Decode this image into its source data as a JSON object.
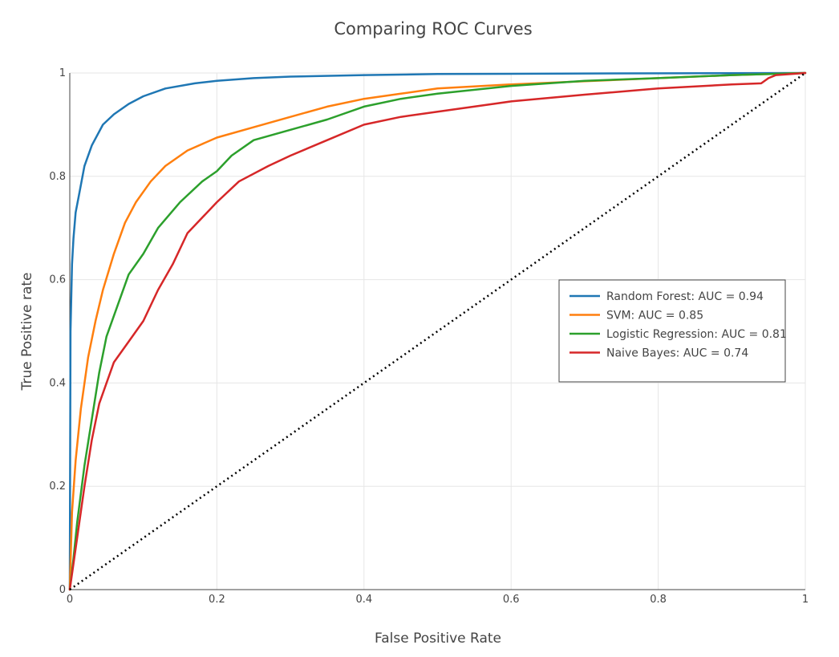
{
  "chart_data": {
    "type": "line",
    "title": "Comparing ROC Curves",
    "xlabel": "False Positive Rate",
    "ylabel": "True Positive rate",
    "xlim": [
      0,
      1
    ],
    "ylim": [
      0,
      1
    ],
    "xticks": [
      0,
      0.2,
      0.4,
      0.6,
      0.8,
      1
    ],
    "yticks": [
      0,
      0.2,
      0.4,
      0.6,
      0.8,
      1
    ],
    "xtick_labels": [
      "0",
      "0.2",
      "0.4",
      "0.6",
      "0.8",
      "1"
    ],
    "ytick_labels": [
      "0",
      "0.2",
      "0.4",
      "0.6",
      "0.8",
      "1"
    ],
    "grid": true,
    "legend_position": "right",
    "series": [
      {
        "name": "Random Forest: AUC = 0.94",
        "color": "#1f77b4",
        "x": [
          0,
          0.001,
          0.003,
          0.005,
          0.008,
          0.012,
          0.02,
          0.03,
          0.045,
          0.06,
          0.08,
          0.1,
          0.13,
          0.17,
          0.2,
          0.25,
          0.3,
          0.4,
          0.5,
          0.7,
          1.0
        ],
        "y": [
          0,
          0.5,
          0.63,
          0.68,
          0.73,
          0.76,
          0.82,
          0.86,
          0.9,
          0.92,
          0.94,
          0.955,
          0.97,
          0.98,
          0.985,
          0.99,
          0.993,
          0.996,
          0.998,
          0.999,
          1.0
        ]
      },
      {
        "name": "SVM: AUC = 0.85",
        "color": "#ff7f0e",
        "x": [
          0,
          0.003,
          0.008,
          0.015,
          0.025,
          0.035,
          0.045,
          0.06,
          0.075,
          0.09,
          0.11,
          0.13,
          0.16,
          0.2,
          0.25,
          0.3,
          0.35,
          0.4,
          0.45,
          0.5,
          0.6,
          0.7,
          0.8,
          0.9,
          1.0
        ],
        "y": [
          0,
          0.15,
          0.25,
          0.35,
          0.45,
          0.52,
          0.58,
          0.65,
          0.71,
          0.75,
          0.79,
          0.82,
          0.85,
          0.875,
          0.895,
          0.915,
          0.935,
          0.95,
          0.96,
          0.97,
          0.978,
          0.984,
          0.99,
          0.996,
          1.0
        ]
      },
      {
        "name": "Logistic Regression: AUC = 0.81",
        "color": "#2ca02c",
        "x": [
          0,
          0.005,
          0.01,
          0.02,
          0.03,
          0.04,
          0.05,
          0.065,
          0.08,
          0.1,
          0.12,
          0.15,
          0.18,
          0.2,
          0.22,
          0.25,
          0.3,
          0.35,
          0.4,
          0.45,
          0.5,
          0.6,
          0.7,
          0.8,
          0.9,
          1.0
        ],
        "y": [
          0,
          0.06,
          0.13,
          0.24,
          0.33,
          0.42,
          0.49,
          0.55,
          0.61,
          0.65,
          0.7,
          0.75,
          0.79,
          0.81,
          0.84,
          0.87,
          0.89,
          0.91,
          0.935,
          0.95,
          0.96,
          0.975,
          0.985,
          0.99,
          0.996,
          1.0
        ]
      },
      {
        "name": "Naive Bayes: AUC = 0.74",
        "color": "#d62728",
        "x": [
          0,
          0.005,
          0.012,
          0.02,
          0.03,
          0.04,
          0.05,
          0.06,
          0.08,
          0.1,
          0.12,
          0.14,
          0.16,
          0.18,
          0.2,
          0.23,
          0.27,
          0.3,
          0.35,
          0.4,
          0.45,
          0.5,
          0.6,
          0.7,
          0.8,
          0.9,
          0.94,
          0.95,
          0.96,
          1.0
        ],
        "y": [
          0,
          0.05,
          0.12,
          0.2,
          0.29,
          0.36,
          0.4,
          0.44,
          0.48,
          0.52,
          0.58,
          0.63,
          0.69,
          0.72,
          0.75,
          0.79,
          0.82,
          0.84,
          0.87,
          0.9,
          0.915,
          0.925,
          0.945,
          0.958,
          0.97,
          0.978,
          0.98,
          0.99,
          0.996,
          1.0
        ]
      },
      {
        "name": "",
        "color": "#000000",
        "dash": "dot",
        "x": [
          0,
          1
        ],
        "y": [
          0,
          1
        ]
      }
    ],
    "legend_entries": [
      {
        "label": "Random Forest: AUC = 0.94",
        "color": "#1f77b4"
      },
      {
        "label": "SVM: AUC = 0.85",
        "color": "#ff7f0e"
      },
      {
        "label": "Logistic Regression: AUC = 0.81",
        "color": "#2ca02c"
      },
      {
        "label": "Naive Bayes: AUC = 0.74",
        "color": "#d62728"
      }
    ]
  }
}
